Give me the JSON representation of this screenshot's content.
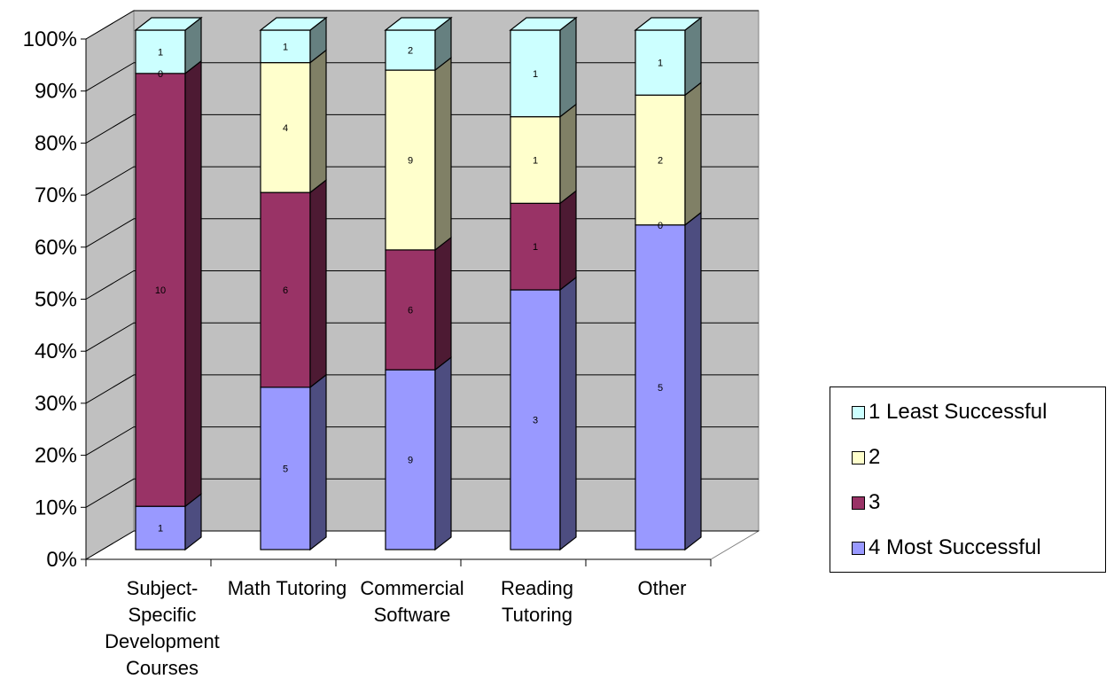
{
  "chart_data": {
    "type": "bar",
    "stacked": "percent",
    "three_d": true,
    "categories": [
      [
        "Subject-",
        "Specific",
        "Development",
        "Courses"
      ],
      [
        "Math Tutoring"
      ],
      [
        "Commercial",
        "Software"
      ],
      [
        "Reading",
        "Tutoring"
      ],
      [
        "Other"
      ]
    ],
    "y_ticks": [
      "0%",
      "10%",
      "20%",
      "30%",
      "40%",
      "50%",
      "60%",
      "70%",
      "80%",
      "90%",
      "100%"
    ],
    "ylim": [
      0,
      100
    ],
    "grid": true,
    "legend_position": "right",
    "series": [
      {
        "name": "4 Most Successful",
        "color": "#9999FF",
        "side": "#4D4D80",
        "values": [
          1,
          5,
          9,
          3,
          5
        ],
        "labels": [
          "1",
          "5",
          "9",
          "3",
          "5"
        ]
      },
      {
        "name": "3",
        "color": "#993366",
        "side": "#4D1A33",
        "values": [
          10,
          6,
          6,
          1,
          0
        ],
        "labels": [
          "10",
          "6",
          "6",
          "1",
          "0"
        ]
      },
      {
        "name": "2",
        "color": "#FFFFCC",
        "side": "#808066",
        "values": [
          0,
          4,
          9,
          1,
          2
        ],
        "labels": [
          "0",
          "4",
          "9",
          "1",
          "2"
        ]
      },
      {
        "name": "1 Least Successful",
        "color": "#CCFFFF",
        "side": "#668080",
        "values": [
          1,
          1,
          2,
          1,
          1
        ],
        "labels": [
          "1",
          "1",
          "2",
          "1",
          "1"
        ]
      }
    ]
  },
  "legend": {
    "items": [
      {
        "label": "1 Least Successful",
        "color": "#CCFFFF"
      },
      {
        "label": "2",
        "color": "#FFFFCC"
      },
      {
        "label": "3",
        "color": "#993366"
      },
      {
        "label": "4 Most Successful",
        "color": "#9999FF"
      }
    ]
  }
}
